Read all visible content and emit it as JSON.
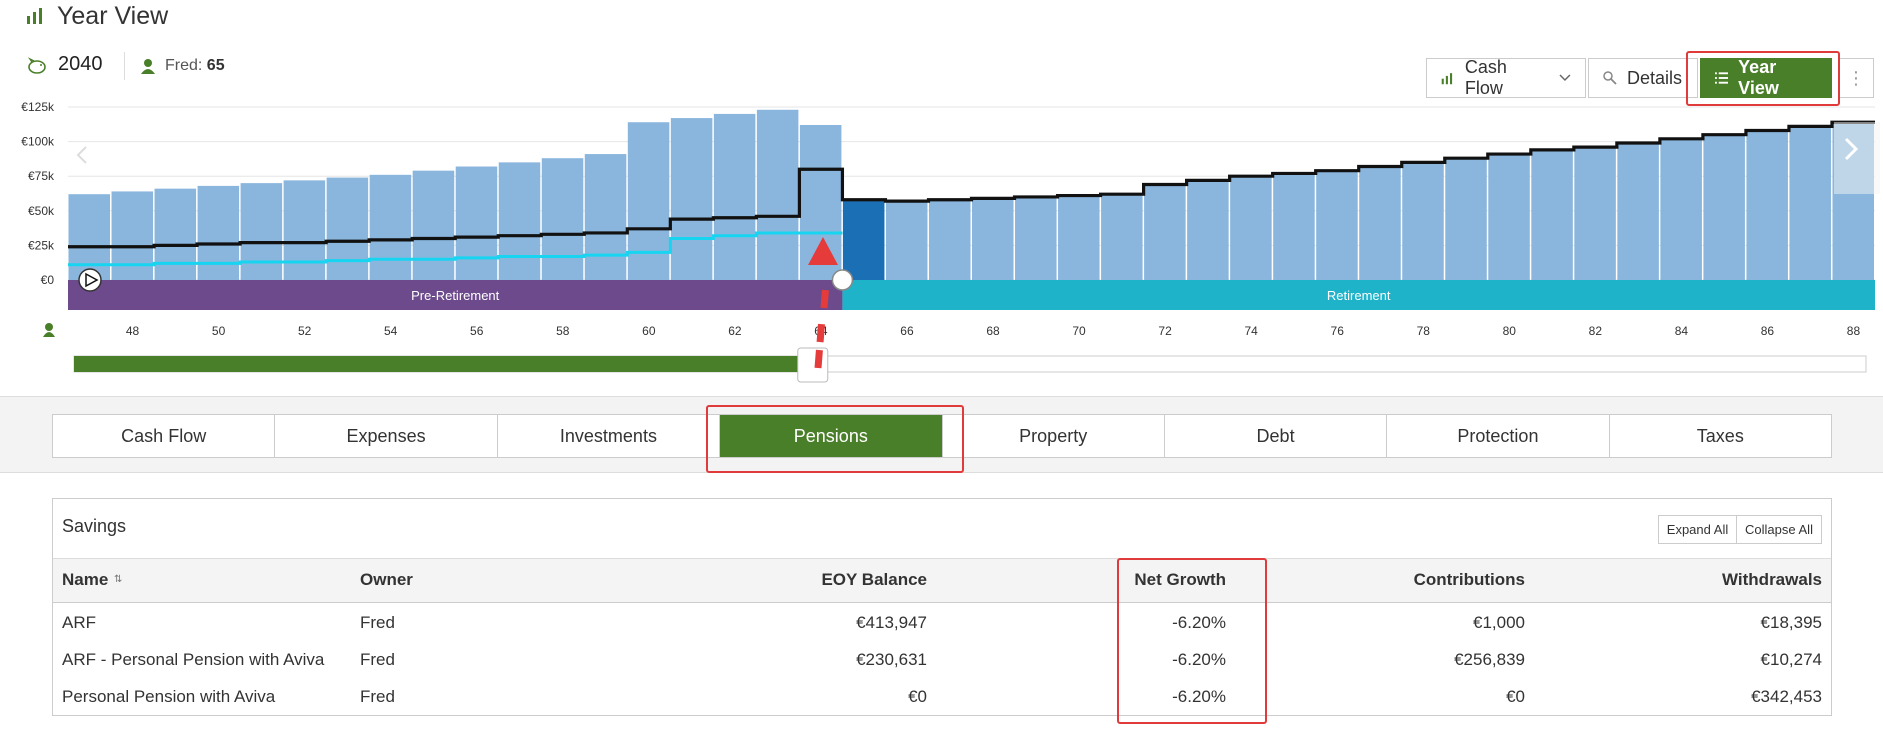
{
  "header": {
    "title": "Year View",
    "icon": "bar-chart-icon"
  },
  "scenario": {
    "year": "2040",
    "person_name": "Fred:",
    "person_age": "65"
  },
  "toolbar": {
    "cashflow_label": "Cash Flow",
    "details_label": "Details",
    "yearview_label": "Year View",
    "accent": "#4a7f2a",
    "highlight": "#e03a3a"
  },
  "chart_data": {
    "type": "bar",
    "y_tick_labels": [
      "€125k",
      "€100k",
      "€75k",
      "€50k",
      "€25k",
      "€0"
    ],
    "ylim": [
      0,
      125000
    ],
    "x_start_age": 47,
    "x_end_age": 89,
    "x_tick_labels": [
      "48",
      "50",
      "52",
      "54",
      "56",
      "58",
      "60",
      "62",
      "64",
      "66",
      "68",
      "70",
      "72",
      "74",
      "76",
      "78",
      "80",
      "82",
      "84",
      "86",
      "88"
    ],
    "selected_age": 65,
    "bars": [
      62000,
      64000,
      66000,
      68000,
      70000,
      72000,
      74000,
      76000,
      79000,
      82000,
      85000,
      88000,
      91000,
      114000,
      117000,
      120000,
      123000,
      112000,
      57000,
      57000,
      58000,
      59000,
      60000,
      61000,
      62000,
      69000,
      72000,
      75000,
      77000,
      79000,
      82000,
      85000,
      88000,
      91000,
      94000,
      96000,
      99000,
      102000,
      105000,
      108000,
      111000,
      114000
    ],
    "line_black": [
      24000,
      24000,
      25000,
      26000,
      27000,
      27000,
      28000,
      29000,
      30000,
      31000,
      32000,
      33000,
      34000,
      37000,
      44000,
      45000,
      46000,
      80000,
      58000,
      57000,
      58000,
      59000,
      60000,
      61000,
      62000,
      69000,
      72000,
      75000,
      77000,
      79000,
      82000,
      85000,
      88000,
      91000,
      94000,
      96000,
      99000,
      102000,
      105000,
      108000,
      111000,
      114000
    ],
    "line_cyan": [
      11000,
      11000,
      12000,
      12000,
      13000,
      13000,
      14000,
      15000,
      15000,
      16000,
      17000,
      17000,
      18000,
      20000,
      30000,
      32000,
      34000,
      34000
    ],
    "phases": [
      {
        "label": "Pre-Retirement",
        "color": "#6c4a8c",
        "from_age": 47,
        "to_age": 64
      },
      {
        "label": "Retirement",
        "color": "#1eb3c9",
        "from_age": 64,
        "to_age": 89
      }
    ],
    "bar_color": "#8ab6dd",
    "selected_bar_color": "#1a6fb5",
    "slider_progress": 0.405
  },
  "tabs": [
    "Cash Flow",
    "Expenses",
    "Investments",
    "Pensions",
    "Property",
    "Debt",
    "Protection",
    "Taxes"
  ],
  "active_tab": "Pensions",
  "savings": {
    "title": "Savings",
    "expand_label": "Expand All",
    "collapse_label": "Collapse All",
    "columns": [
      "Name",
      "Owner",
      "EOY Balance",
      "Net Growth",
      "Contributions",
      "Withdrawals"
    ],
    "rows": [
      [
        "ARF",
        "Fred",
        "€413,947",
        "-6.20%",
        "€1,000",
        "€18,395"
      ],
      [
        "ARF - Personal Pension with Aviva",
        "Fred",
        "€230,631",
        "-6.20%",
        "€256,839",
        "€10,274"
      ],
      [
        "Personal Pension with Aviva",
        "Fred",
        "€0",
        "-6.20%",
        "€0",
        "€342,453"
      ]
    ]
  }
}
